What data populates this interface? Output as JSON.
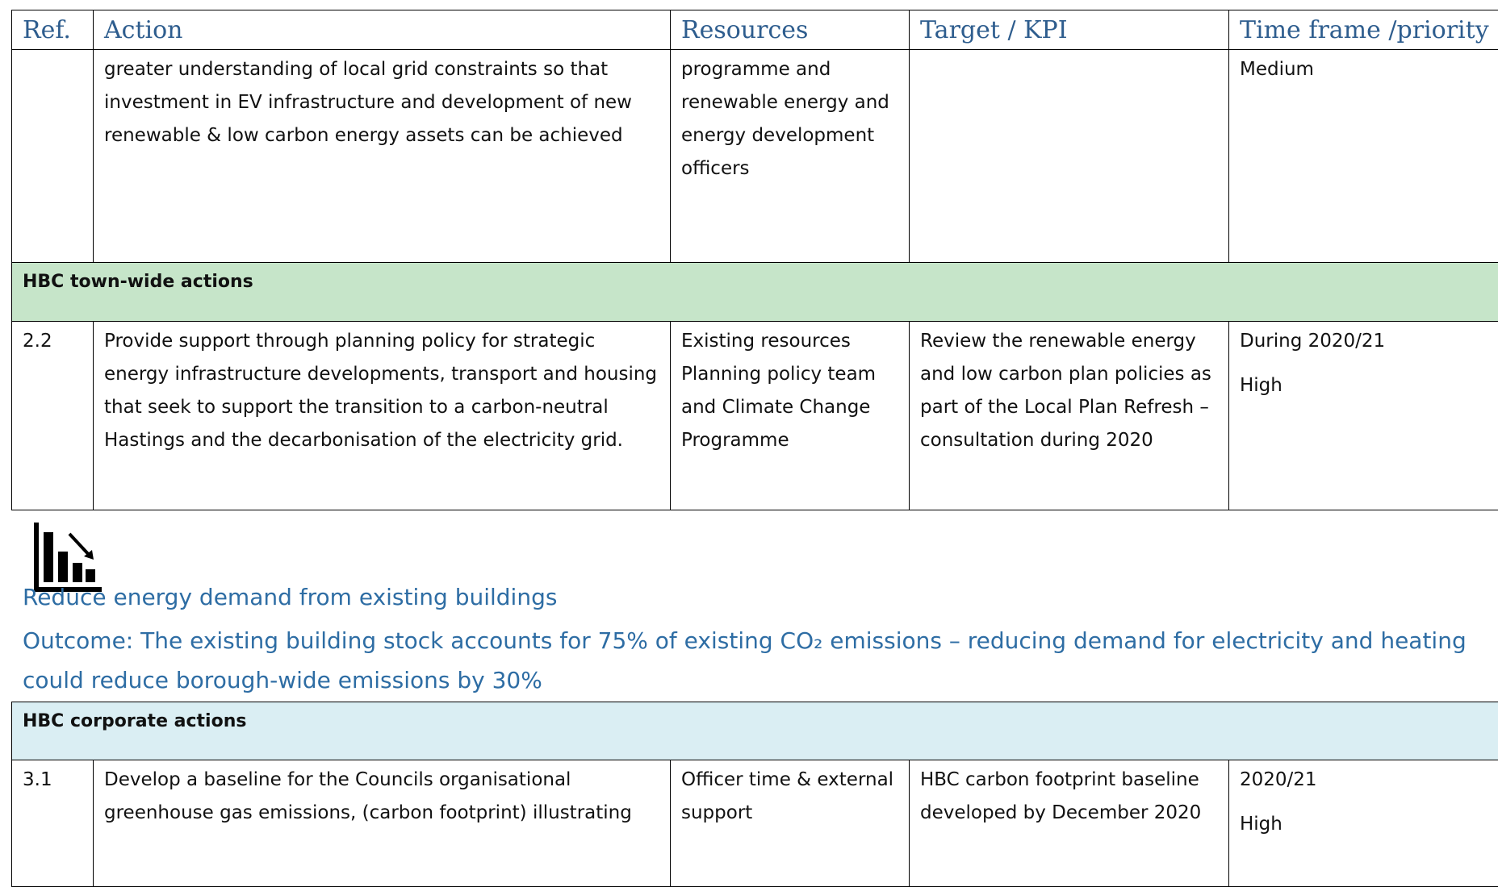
{
  "table_top": {
    "columns": [
      "Ref.",
      "Action",
      "Resources",
      "Target / KPI",
      "Time frame /priority"
    ],
    "rows": [
      {
        "action": "greater understanding of local grid constraints so that investment in EV infrastructure and development of new renewable & low carbon energy assets can be achieved",
        "resources": "programme and renewable energy and energy development officers",
        "timeframe": [
          "Medium"
        ]
      },
      {
        "section": "HBC town-wide actions"
      },
      {
        "ref": "2.2",
        "action": "Provide support through planning policy for strategic energy infrastructure developments, transport and housing that seek to support the transition to a carbon-neutral Hastings and the decarbonisation of the electricity grid.",
        "resources": "Existing resources Planning policy team and Climate Change Programme",
        "target": "Review the renewable energy and low carbon plan policies as part of the Local Plan Refresh – consultation during 2020",
        "timeframe": [
          "During 2020/21",
          "High"
        ]
      }
    ]
  },
  "section_heading": {
    "title": "Reduce energy demand from existing buildings",
    "outcome": "Outcome: The existing building stock accounts for 75% of existing CO₂ emissions – reducing demand for electricity and heating could reduce borough-wide emissions by 30%"
  },
  "table_bottom": {
    "rows": [
      {
        "section": "HBC corporate actions"
      },
      {
        "ref": "3.1",
        "action": "Develop a baseline for the Councils organisational greenhouse gas emissions, (carbon footprint) illustrating",
        "resources": "Officer time & external support",
        "target": "HBC carbon footprint baseline developed by December 2020",
        "timeframe": [
          "2020/21",
          "High"
        ]
      }
    ]
  }
}
